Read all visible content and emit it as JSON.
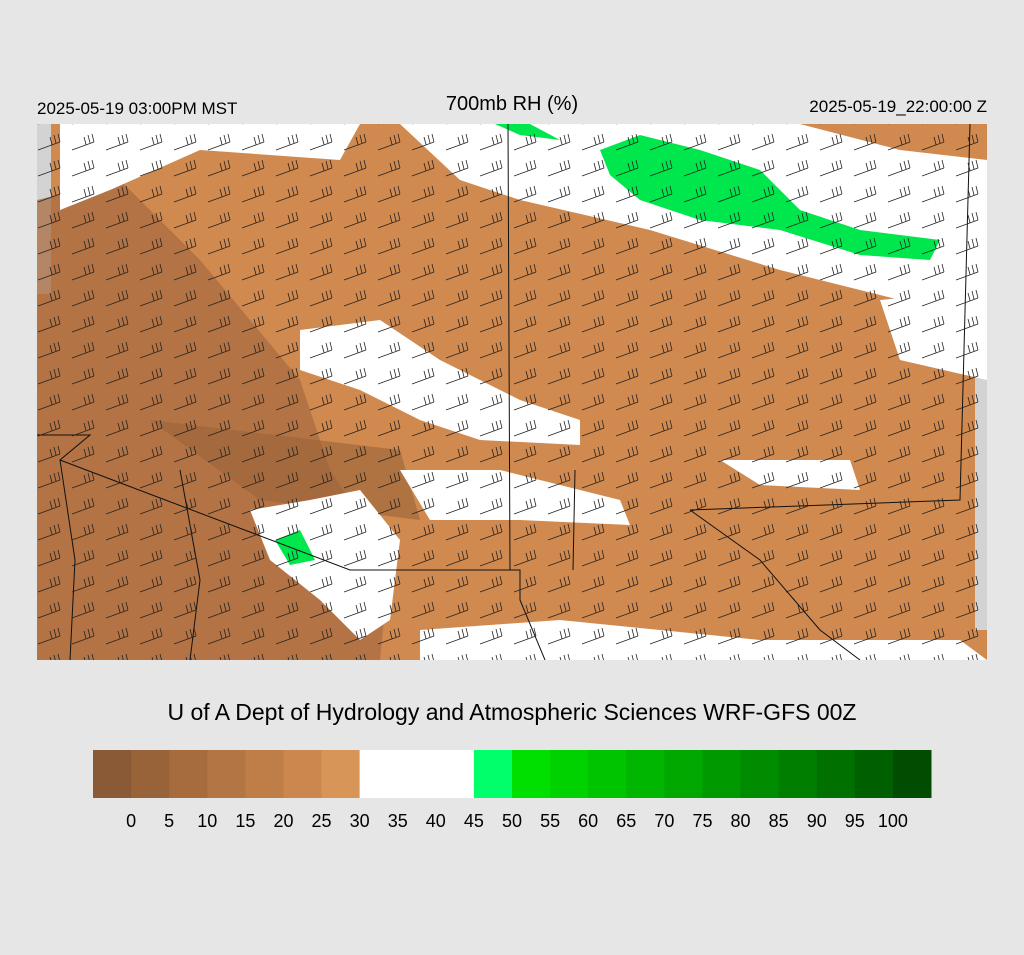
{
  "header": {
    "valid_local": "2025-05-19 03:00PM MST",
    "title": "700mb RH (%)",
    "valid_utc": "2025-05-19_22:00:00 Z"
  },
  "credit": "U of A Dept of Hydrology and Atmospheric Sciences WRF-GFS 00Z",
  "colorbar": {
    "levels": [
      0,
      5,
      10,
      15,
      20,
      25,
      30,
      35,
      40,
      45,
      50,
      55,
      60,
      65,
      70,
      75,
      80,
      85,
      90,
      95,
      100
    ],
    "colors": [
      "#8a5a36",
      "#996339",
      "#a66c3e",
      "#b27543",
      "#bf7e48",
      "#cb874d",
      "#d89558",
      "#ffffff",
      "#ffffff",
      "#ffffff",
      "#00ff6a",
      "#00e000",
      "#00d200",
      "#00c400",
      "#00b600",
      "#00a800",
      "#009a00",
      "#008c00",
      "#007e00",
      "#007000",
      "#006000",
      "#004c00"
    ]
  }
}
